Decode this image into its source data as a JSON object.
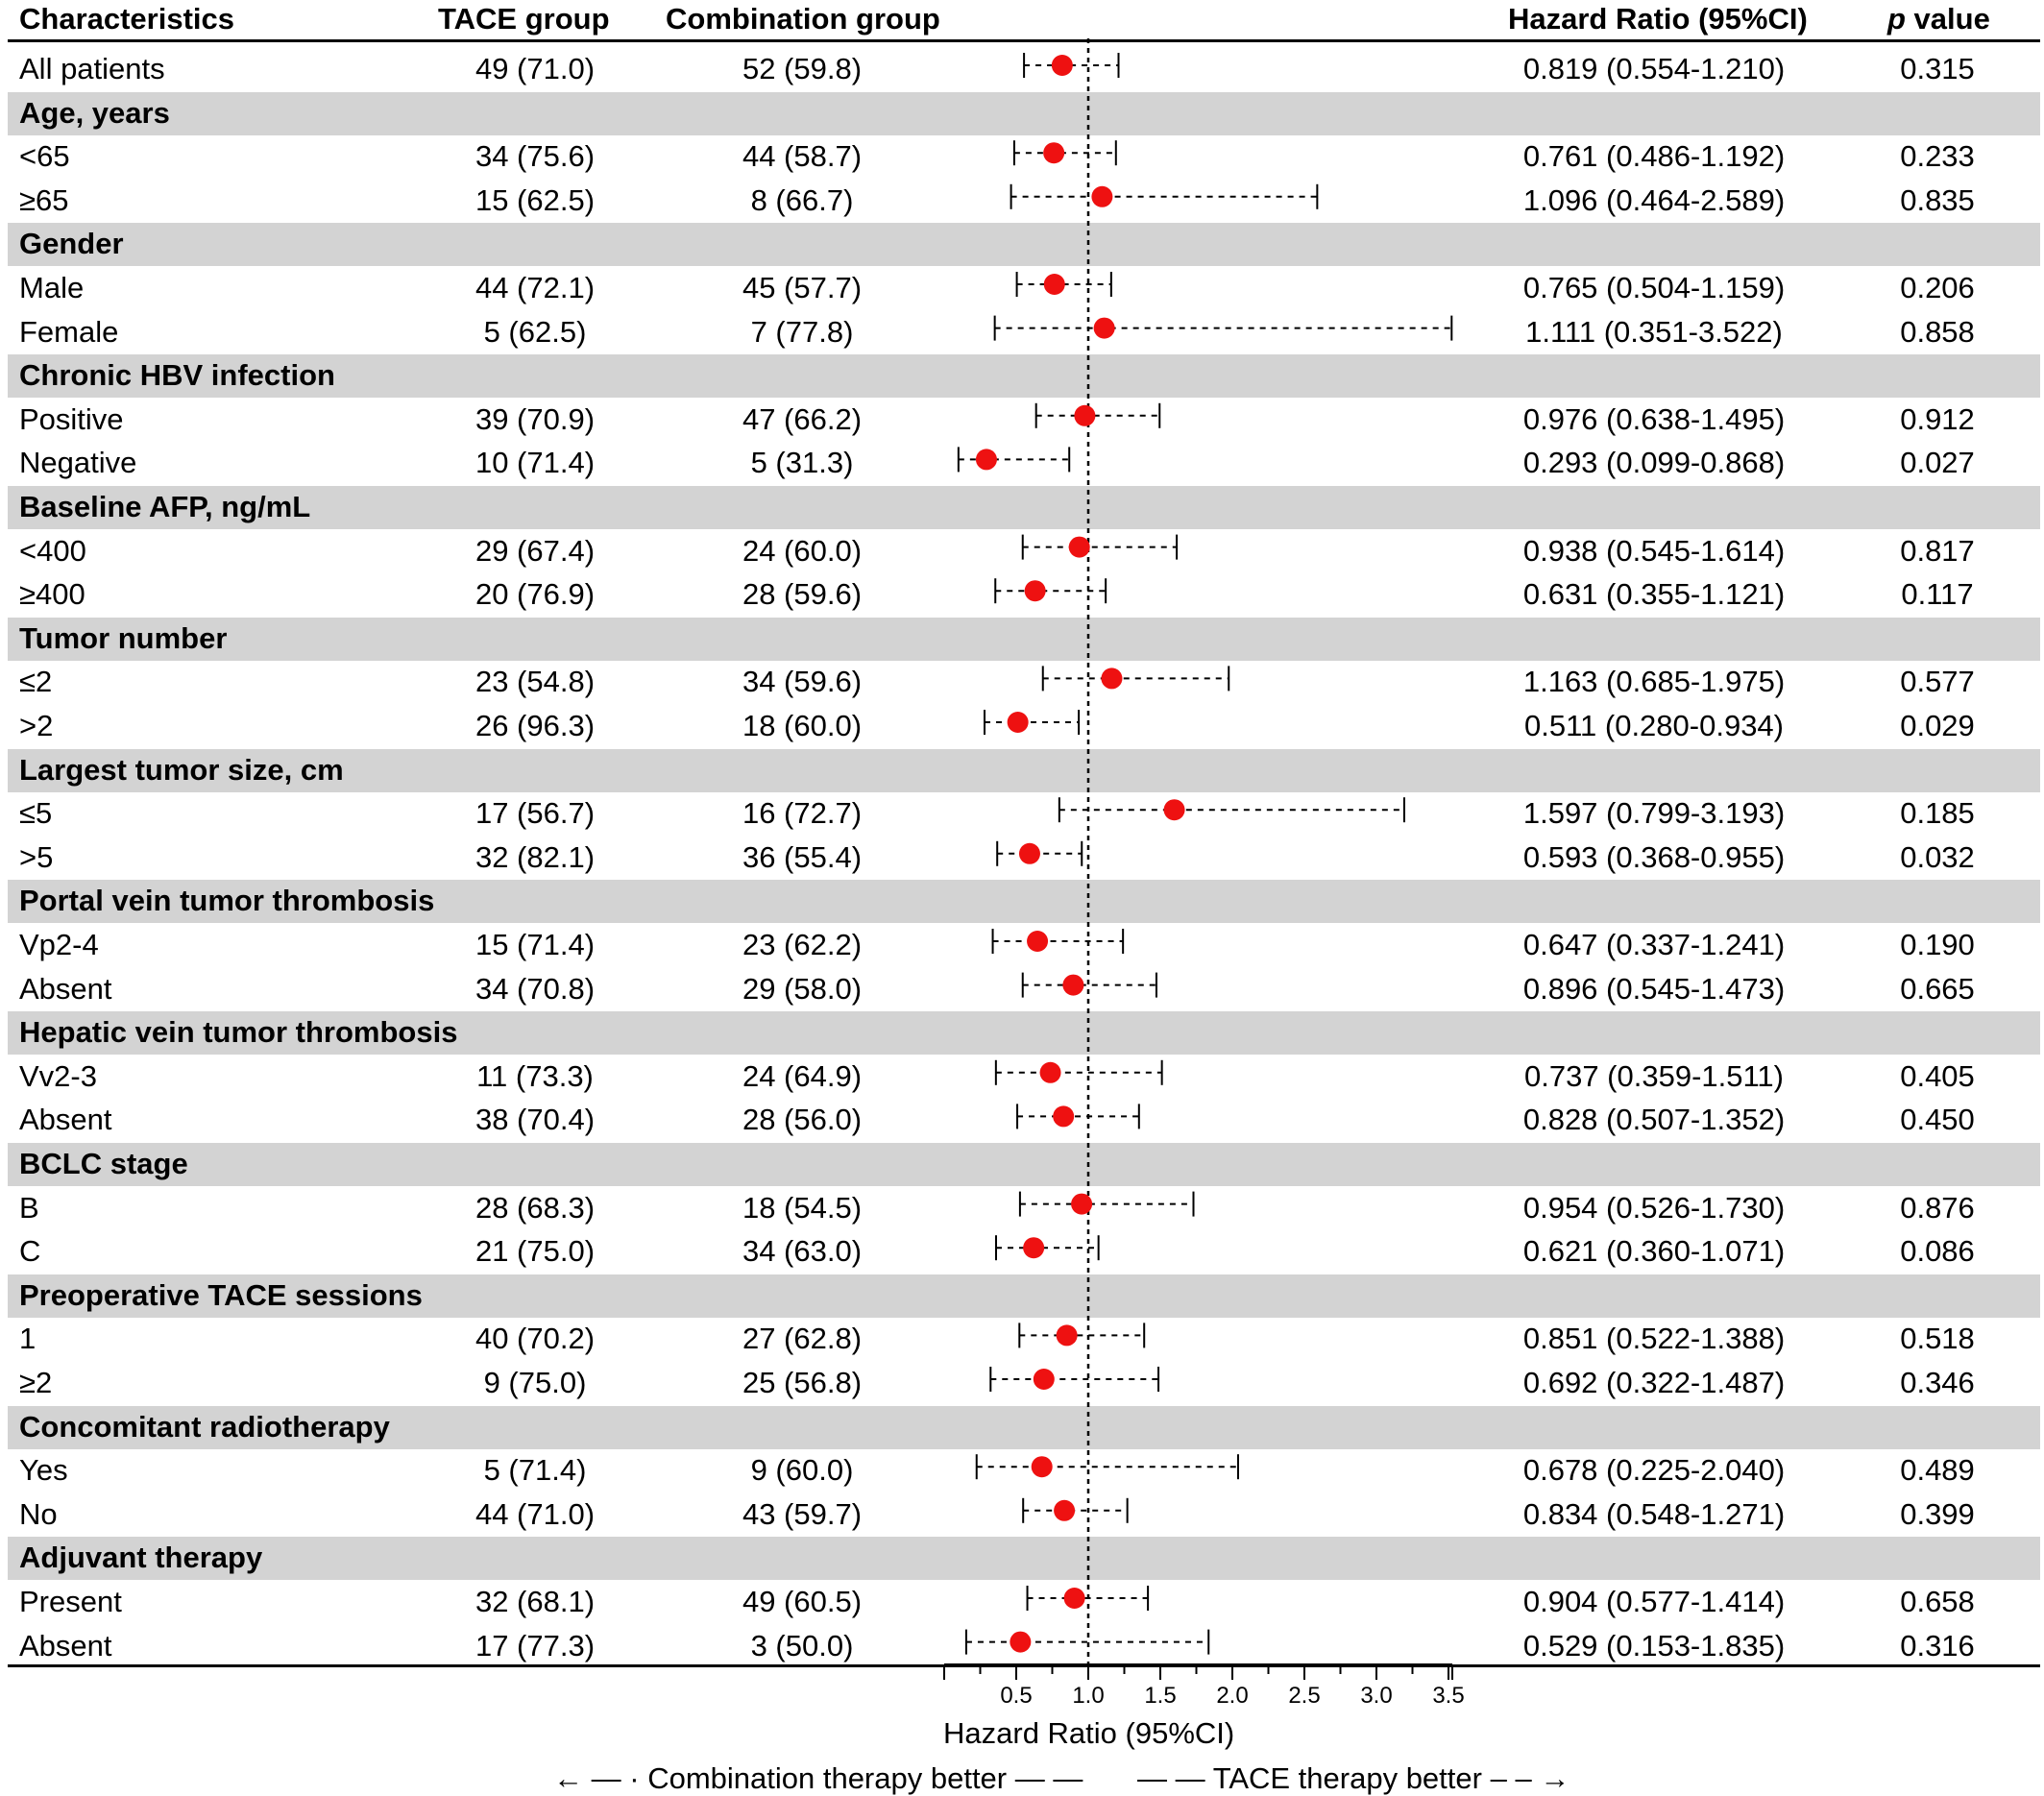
{
  "headers": {
    "characteristics": "Characteristics",
    "tace": "TACE group",
    "combination": "Combination group",
    "hr": "Hazard Ratio (95%CI)",
    "p_italic": "p",
    "p_rest": " value"
  },
  "rows": [
    {
      "type": "data",
      "label": "All patients",
      "tace": "49 (71.0)",
      "comb": "52 (59.8)",
      "hr_text": "0.819 (0.554-1.210)",
      "p": "0.315"
    },
    {
      "type": "group",
      "label": "Age, years"
    },
    {
      "type": "data",
      "label": "<65",
      "tace": "34 (75.6)",
      "comb": "44 (58.7)",
      "hr_text": "0.761 (0.486-1.192)",
      "p": "0.233"
    },
    {
      "type": "data",
      "label": "≥65",
      "tace": "15 (62.5)",
      "comb": "8 (66.7)",
      "hr_text": "1.096 (0.464-2.589)",
      "p": "0.835"
    },
    {
      "type": "group",
      "label": "Gender"
    },
    {
      "type": "data",
      "label": "Male",
      "tace": "44 (72.1)",
      "comb": "45 (57.7)",
      "hr_text": "0.765 (0.504-1.159)",
      "p": "0.206"
    },
    {
      "type": "data",
      "label": "Female",
      "tace": "5 (62.5)",
      "comb": "7 (77.8)",
      "hr_text": "1.111 (0.351-3.522)",
      "p": "0.858"
    },
    {
      "type": "group",
      "label": "Chronic HBV infection"
    },
    {
      "type": "data",
      "label": "Positive",
      "tace": "39 (70.9)",
      "comb": "47 (66.2)",
      "hr_text": "0.976 (0.638-1.495)",
      "p": "0.912"
    },
    {
      "type": "data",
      "label": "Negative",
      "tace": "10 (71.4)",
      "comb": "5 (31.3)",
      "hr_text": "0.293 (0.099-0.868)",
      "p": "0.027"
    },
    {
      "type": "group",
      "label": "Baseline AFP, ng/mL"
    },
    {
      "type": "data",
      "label": "<400",
      "tace": "29 (67.4)",
      "comb": "24 (60.0)",
      "hr_text": "0.938 (0.545-1.614)",
      "p": "0.817"
    },
    {
      "type": "data",
      "label": "≥400",
      "tace": "20 (76.9)",
      "comb": "28 (59.6)",
      "hr_text": "0.631 (0.355-1.121)",
      "p": "0.117"
    },
    {
      "type": "group",
      "label": "Tumor number"
    },
    {
      "type": "data",
      "label": "≤2",
      "tace": "23 (54.8)",
      "comb": "34 (59.6)",
      "hr_text": "1.163 (0.685-1.975)",
      "p": "0.577"
    },
    {
      "type": "data",
      "label": ">2",
      "tace": "26 (96.3)",
      "comb": "18 (60.0)",
      "hr_text": "0.511 (0.280-0.934)",
      "p": "0.029"
    },
    {
      "type": "group",
      "label": "Largest tumor size, cm"
    },
    {
      "type": "data",
      "label": "≤5",
      "tace": "17 (56.7)",
      "comb": "16 (72.7)",
      "hr_text": "1.597 (0.799-3.193)",
      "p": "0.185"
    },
    {
      "type": "data",
      "label": ">5",
      "tace": "32 (82.1)",
      "comb": "36 (55.4)",
      "hr_text": "0.593 (0.368-0.955)",
      "p": "0.032"
    },
    {
      "type": "group",
      "label": "Portal vein tumor thrombosis"
    },
    {
      "type": "data",
      "label": "Vp2-4",
      "tace": "15 (71.4)",
      "comb": "23 (62.2)",
      "hr_text": "0.647 (0.337-1.241)",
      "p": "0.190"
    },
    {
      "type": "data",
      "label": "Absent",
      "tace": "34 (70.8)",
      "comb": "29 (58.0)",
      "hr_text": "0.896 (0.545-1.473)",
      "p": "0.665"
    },
    {
      "type": "group",
      "label": "Hepatic vein tumor thrombosis"
    },
    {
      "type": "data",
      "label": "Vv2-3",
      "tace": "11 (73.3)",
      "comb": "24 (64.9)",
      "hr_text": "0.737 (0.359-1.511)",
      "p": "0.405"
    },
    {
      "type": "data",
      "label": "Absent",
      "tace": "38 (70.4)",
      "comb": "28 (56.0)",
      "hr_text": "0.828 (0.507-1.352)",
      "p": "0.450"
    },
    {
      "type": "group",
      "label": "BCLC stage"
    },
    {
      "type": "data",
      "label": "B",
      "tace": "28 (68.3)",
      "comb": "18 (54.5)",
      "hr_text": "0.954 (0.526-1.730)",
      "p": "0.876"
    },
    {
      "type": "data",
      "label": "C",
      "tace": "21 (75.0)",
      "comb": "34 (63.0)",
      "hr_text": "0.621 (0.360-1.071)",
      "p": "0.086"
    },
    {
      "type": "group",
      "label": "Preoperative TACE sessions"
    },
    {
      "type": "data",
      "label": "1",
      "tace": "40 (70.2)",
      "comb": "27 (62.8)",
      "hr_text": "0.851 (0.522-1.388)",
      "p": "0.518"
    },
    {
      "type": "data",
      "label": "≥2",
      "tace": "9 (75.0)",
      "comb": "25 (56.8)",
      "hr_text": "0.692 (0.322-1.487)",
      "p": "0.346"
    },
    {
      "type": "group",
      "label": "Concomitant radiotherapy"
    },
    {
      "type": "data",
      "label": "Yes",
      "tace": "5 (71.4)",
      "comb": "9 (60.0)",
      "hr_text": "0.678 (0.225-2.040)",
      "p": "0.489"
    },
    {
      "type": "data",
      "label": "No",
      "tace": "44 (71.0)",
      "comb": "43 (59.7)",
      "hr_text": "0.834 (0.548-1.271)",
      "p": "0.399"
    },
    {
      "type": "group",
      "label": "Adjuvant therapy"
    },
    {
      "type": "data",
      "label": "Present",
      "tace": "32 (68.1)",
      "comb": "49 (60.5)",
      "hr_text": "0.904 (0.577-1.414)",
      "p": "0.658"
    },
    {
      "type": "data",
      "label": "Absent",
      "tace": "17 (77.3)",
      "comb": "3 (50.0)",
      "hr_text": "0.529 (0.153-1.835)",
      "p": "0.316"
    }
  ],
  "chart_data": {
    "type": "scatter",
    "xlabel": "Hazard Ratio (95%CI)",
    "x_ticks": [
      "0.5",
      "1.0",
      "1.5",
      "2.0",
      "2.5",
      "3.0",
      "3.5"
    ],
    "xlim": [
      0.1,
      3.6
    ],
    "reference_line": 1.0,
    "point_color": "#ee1111",
    "band_color": "#d3d3d3",
    "series": [
      {
        "categories": [
          "All patients",
          "<65",
          "≥65",
          "Male",
          "Female",
          "Positive",
          "Negative",
          "<400",
          "≥400",
          "≤2",
          ">2",
          "≤5",
          ">5",
          "Vp2-4",
          "Absent",
          "Vv2-3",
          "Absent",
          "B",
          "C",
          "1",
          "≥2",
          "Yes",
          "No",
          "Present",
          "Absent"
        ],
        "hr": [
          0.819,
          0.761,
          1.096,
          0.765,
          1.111,
          0.976,
          0.293,
          0.938,
          0.631,
          1.163,
          0.511,
          1.597,
          0.593,
          0.647,
          0.896,
          0.737,
          0.828,
          0.954,
          0.621,
          0.851,
          0.692,
          0.678,
          0.834,
          0.904,
          0.529
        ],
        "lower": [
          0.554,
          0.486,
          0.464,
          0.504,
          0.351,
          0.638,
          0.099,
          0.545,
          0.355,
          0.685,
          0.28,
          0.799,
          0.368,
          0.337,
          0.545,
          0.359,
          0.507,
          0.526,
          0.36,
          0.522,
          0.322,
          0.225,
          0.548,
          0.577,
          0.153
        ],
        "upper": [
          1.21,
          1.192,
          2.589,
          1.159,
          3.522,
          1.495,
          0.868,
          1.614,
          1.121,
          1.975,
          0.934,
          3.193,
          0.955,
          1.241,
          1.473,
          1.511,
          1.352,
          1.73,
          1.071,
          1.388,
          1.487,
          2.04,
          1.271,
          1.414,
          1.835
        ]
      }
    ]
  },
  "footer": {
    "left_arrow": "←",
    "left_dash1": "— ·",
    "left_text": "Combination therapy better",
    "left_dash2": "— —",
    "right_dash1": "— —",
    "right_text": "TACE therapy better",
    "right_dash2": "– – →"
  }
}
